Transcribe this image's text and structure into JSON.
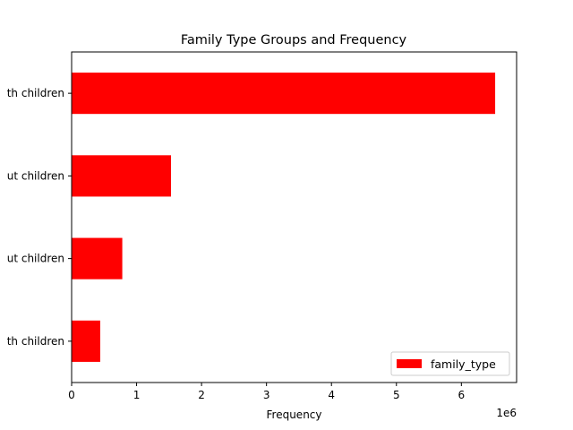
{
  "chart_data": {
    "type": "bar",
    "orientation": "horizontal",
    "title": "Family Type Groups and Frequency",
    "xlabel": "Frequency",
    "ylabel": "",
    "x_scale_label": "1e6",
    "x_ticks": [
      0,
      1,
      2,
      3,
      4,
      5,
      6
    ],
    "xlim": [
      0,
      6.85
    ],
    "categories": [
      "...th children",
      "...ut children",
      "...ut children",
      "...th children"
    ],
    "category_labels_visible": [
      "th children",
      "ut children",
      "ut children",
      "th children"
    ],
    "values": [
      6.52,
      1.53,
      0.78,
      0.44
    ],
    "series": [
      {
        "name": "family_type",
        "color": "#ff0000",
        "values": [
          6.52,
          1.53,
          0.78,
          0.44
        ]
      }
    ],
    "legend": {
      "entries": [
        "family_type"
      ],
      "position": "lower-right"
    },
    "grid": false
  }
}
